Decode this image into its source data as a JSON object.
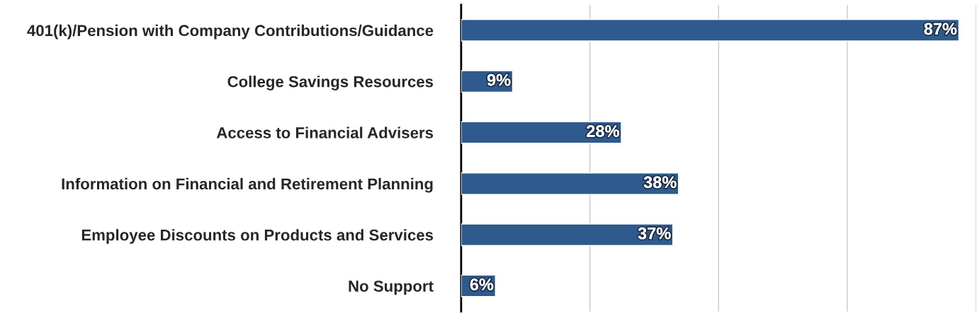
{
  "chart_data": {
    "type": "bar",
    "orientation": "horizontal",
    "categories": [
      "401(k)/Pension with Company Contributions/Guidance",
      "College Savings Resources",
      "Access to Financial Advisers",
      "Information on Financial and Retirement Planning",
      "Employee Discounts on Products and Services",
      "No Support"
    ],
    "values": [
      87,
      9,
      28,
      38,
      37,
      6
    ],
    "value_labels": [
      "87%",
      "9%",
      "28%",
      "38%",
      "37%",
      "6%"
    ],
    "color": "#2e5a8e",
    "xlim": [
      0,
      90
    ],
    "xticks": [
      {
        "value": 0,
        "label": null
      },
      {
        "value": 22.5,
        "label": null
      },
      {
        "value": 45,
        "label": null
      },
      {
        "value": 67.5,
        "label": null
      },
      {
        "value": 90,
        "label": null
      }
    ],
    "grid": "x",
    "tick_labels": "y",
    "legend": false
  }
}
